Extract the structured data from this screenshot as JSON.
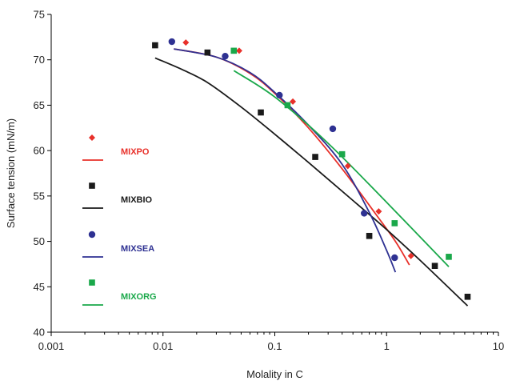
{
  "chart_data": {
    "type": "scatter",
    "xlabel": "Molality in C",
    "ylabel": "Surface tension (mN/m)",
    "xscale": "log",
    "xlim": [
      0.001,
      10
    ],
    "ylim": [
      40,
      75
    ],
    "x_ticks": [
      0.001,
      0.01,
      0.1,
      1,
      10
    ],
    "x_tick_labels": [
      "0.001",
      "0.01",
      "0.1",
      "1",
      "10"
    ],
    "y_ticks": [
      40,
      45,
      50,
      55,
      60,
      65,
      70,
      75
    ],
    "y_tick_labels": [
      "40",
      "45",
      "50",
      "55",
      "60",
      "65",
      "70",
      "75"
    ],
    "grid": false,
    "legend_position": "left",
    "series": [
      {
        "name": "MIXPO",
        "color": "#e8302a",
        "marker": "diamond",
        "points": [
          [
            0.016,
            71.9
          ],
          [
            0.048,
            71.0
          ],
          [
            0.145,
            65.4
          ],
          [
            0.45,
            58.3
          ],
          [
            0.85,
            53.3
          ],
          [
            1.65,
            48.4
          ]
        ],
        "fit": [
          [
            0.0125,
            71.2
          ],
          [
            0.03,
            70.3
          ],
          [
            0.06,
            68.5
          ],
          [
            0.1,
            66.3
          ],
          [
            0.2,
            62.5
          ],
          [
            0.4,
            58.0
          ],
          [
            0.8,
            53.0
          ],
          [
            1.2,
            50.0
          ],
          [
            1.6,
            47.4
          ]
        ]
      },
      {
        "name": "MIXBIO",
        "color": "#1a1a1a",
        "marker": "square",
        "points": [
          [
            0.0085,
            71.6
          ],
          [
            0.025,
            70.8
          ],
          [
            0.075,
            64.2
          ],
          [
            0.23,
            59.3
          ],
          [
            0.7,
            50.6
          ],
          [
            2.7,
            47.3
          ],
          [
            5.3,
            43.9
          ]
        ],
        "fit": [
          [
            0.0085,
            70.2
          ],
          [
            0.015,
            68.9
          ],
          [
            0.025,
            67.5
          ],
          [
            0.05,
            64.8
          ],
          [
            0.1,
            61.8
          ],
          [
            0.2,
            58.7
          ],
          [
            0.5,
            54.5
          ],
          [
            1.0,
            51.3
          ],
          [
            2.0,
            47.9
          ],
          [
            5.3,
            42.9
          ]
        ]
      },
      {
        "name": "MIXSEA",
        "color": "#2e3192",
        "marker": "circle",
        "points": [
          [
            0.012,
            72.0
          ],
          [
            0.036,
            70.4
          ],
          [
            0.11,
            66.1
          ],
          [
            0.33,
            62.4
          ],
          [
            0.63,
            53.1
          ],
          [
            1.18,
            48.2
          ]
        ],
        "fit": [
          [
            0.0125,
            71.2
          ],
          [
            0.03,
            70.3
          ],
          [
            0.06,
            68.6
          ],
          [
            0.1,
            66.4
          ],
          [
            0.2,
            62.8
          ],
          [
            0.4,
            58.5
          ],
          [
            0.7,
            53.2
          ],
          [
            1.0,
            49.0
          ],
          [
            1.2,
            46.6
          ]
        ]
      },
      {
        "name": "MIXORG",
        "color": "#1aa84a",
        "marker": "square",
        "points": [
          [
            0.043,
            71.0
          ],
          [
            0.13,
            65.0
          ],
          [
            0.4,
            59.6
          ],
          [
            1.18,
            52.0
          ],
          [
            3.6,
            48.3
          ]
        ],
        "fit": [
          [
            0.043,
            68.8
          ],
          [
            0.1,
            65.9
          ],
          [
            0.3,
            60.8
          ],
          [
            1.0,
            54.3
          ],
          [
            3.6,
            47.2
          ]
        ]
      }
    ]
  }
}
